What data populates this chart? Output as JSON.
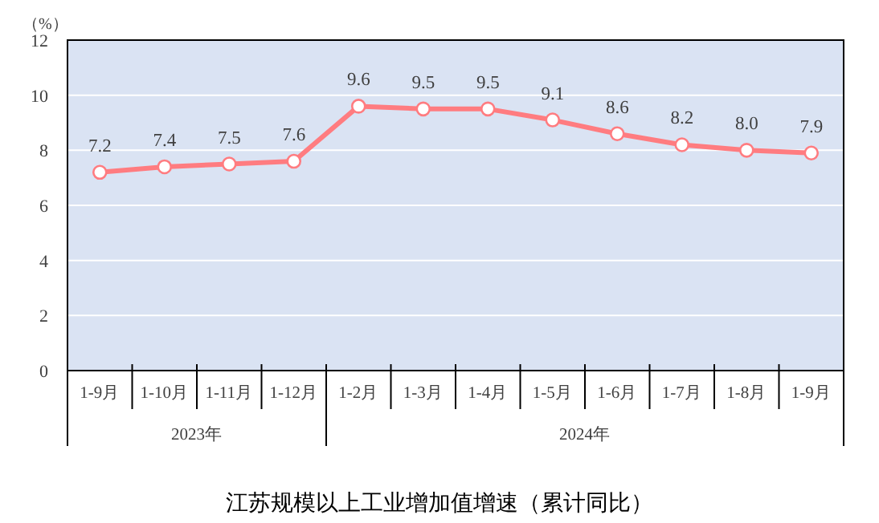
{
  "chart_data": {
    "type": "line",
    "title": "江苏规模以上工业增加值增速（累计同比）",
    "ylabel": "（%）",
    "categories": [
      "1-9月",
      "1-10月",
      "1-11月",
      "1-12月",
      "1-2月",
      "1-3月",
      "1-4月",
      "1-5月",
      "1-6月",
      "1-7月",
      "1-8月",
      "1-9月"
    ],
    "series": [
      {
        "color": "#ff7c80",
        "values": [
          7.2,
          7.4,
          7.5,
          7.6,
          9.6,
          9.5,
          9.5,
          9.1,
          8.6,
          8.2,
          8.0,
          7.9
        ],
        "value_labels": [
          "7.2",
          "7.4",
          "7.5",
          "7.6",
          "9.6",
          "9.5",
          "9.5",
          "9.1",
          "8.6",
          "8.2",
          "8.0",
          "7.9"
        ]
      }
    ],
    "ylim": [
      0,
      12
    ],
    "yticks": [
      0,
      2,
      4,
      6,
      8,
      10,
      12
    ],
    "grid": "y",
    "marker": "circle",
    "annotations": [
      "2023年",
      "2024年"
    ]
  }
}
